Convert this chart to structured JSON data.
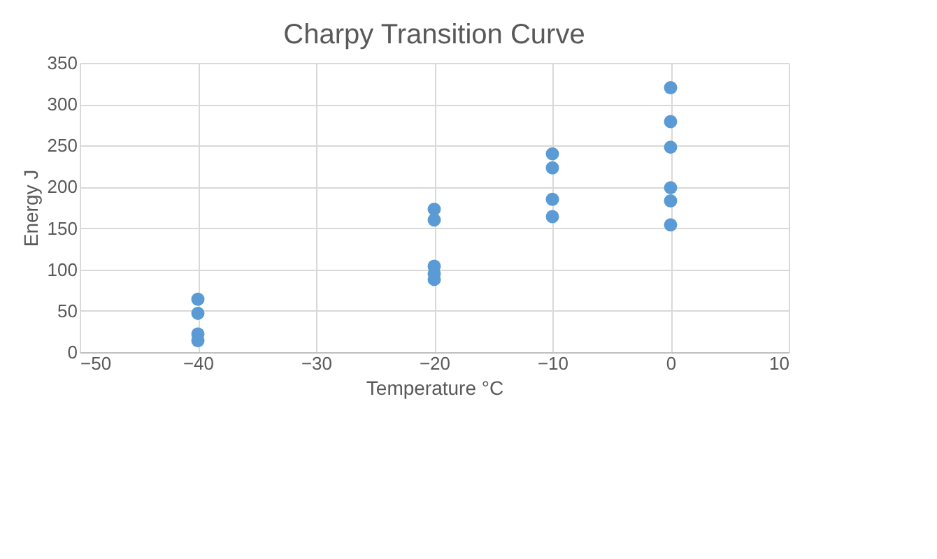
{
  "chart_data": {
    "type": "scatter",
    "title": "Charpy Transition Curve",
    "xlabel": "Temperature °C",
    "ylabel": "Energy J",
    "x": [
      -40,
      -40,
      -40,
      -40,
      -20,
      -20,
      -20,
      -20,
      -20,
      -10,
      -10,
      -10,
      -10,
      0,
      0,
      0,
      0,
      0,
      0
    ],
    "values": [
      64,
      47,
      22,
      14,
      173,
      160,
      104,
      95,
      88,
      240,
      223,
      185,
      164,
      320,
      279,
      248,
      199,
      183,
      154
    ],
    "color": "#5b9bd5",
    "marker": "circle",
    "grid": true,
    "legend": false,
    "xlim": [
      -50,
      10
    ],
    "xticks": [
      -50,
      -40,
      -30,
      -20,
      -10,
      0,
      10
    ],
    "ylim": [
      0,
      350
    ],
    "yticks": [
      0,
      50,
      100,
      150,
      200,
      250,
      300,
      350
    ]
  }
}
